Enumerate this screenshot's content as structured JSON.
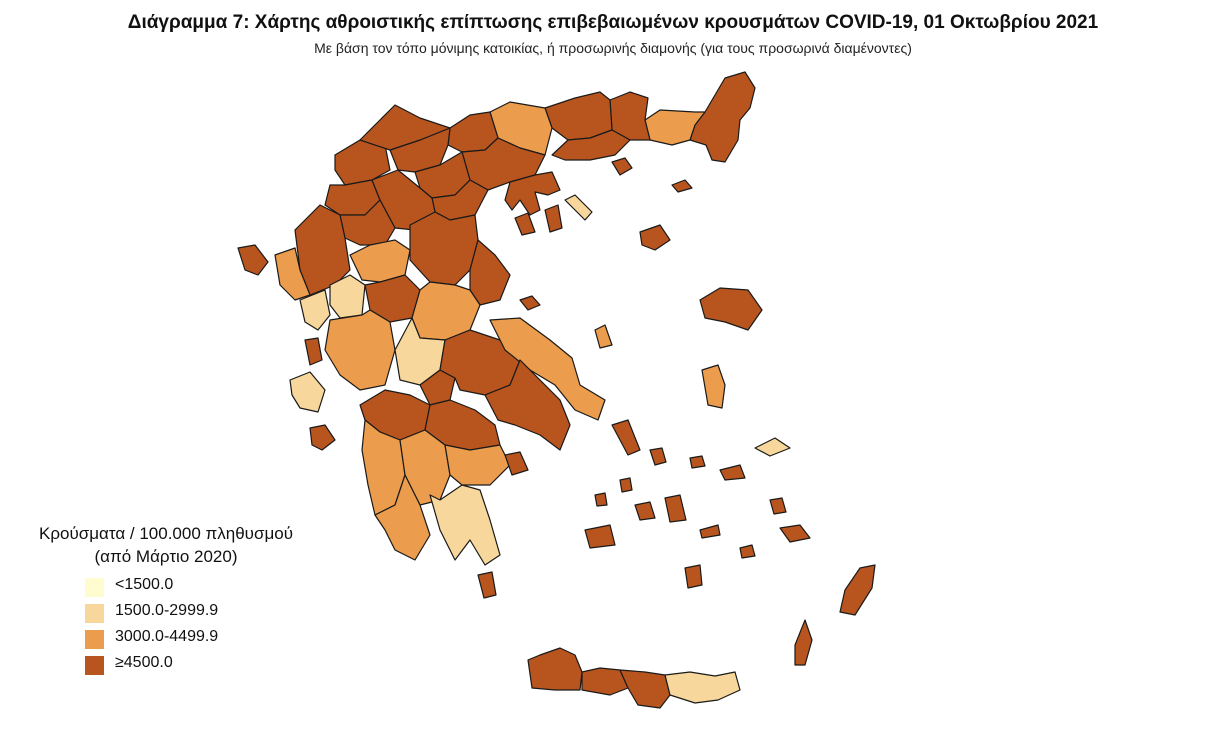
{
  "header": {
    "title": "Διάγραμμα 7: Χάρτης αθροιστικής επίπτωσης επιβεβαιωμένων κρουσμάτων COVID-19, 01 Οκτωβρίου 2021",
    "subtitle": "Με βάση τον τόπο μόνιμης κατοικίας, ή προσωρινής διαμονής (για τους προσωρινά διαμένοντες)"
  },
  "legend": {
    "title_line1": "Κρούσματα / 100.000 πληθυσμού",
    "title_line2": "(από Μάρτιο 2020)",
    "classes": [
      {
        "label": "<1500.0",
        "color": "#fffcd0"
      },
      {
        "label": "1500.0-2999.9",
        "color": "#f7d79b"
      },
      {
        "label": "3000.0-4499.9",
        "color": "#eb9c4c"
      },
      {
        "label": "≥4500.0",
        "color": "#b8551e"
      }
    ]
  }
}
